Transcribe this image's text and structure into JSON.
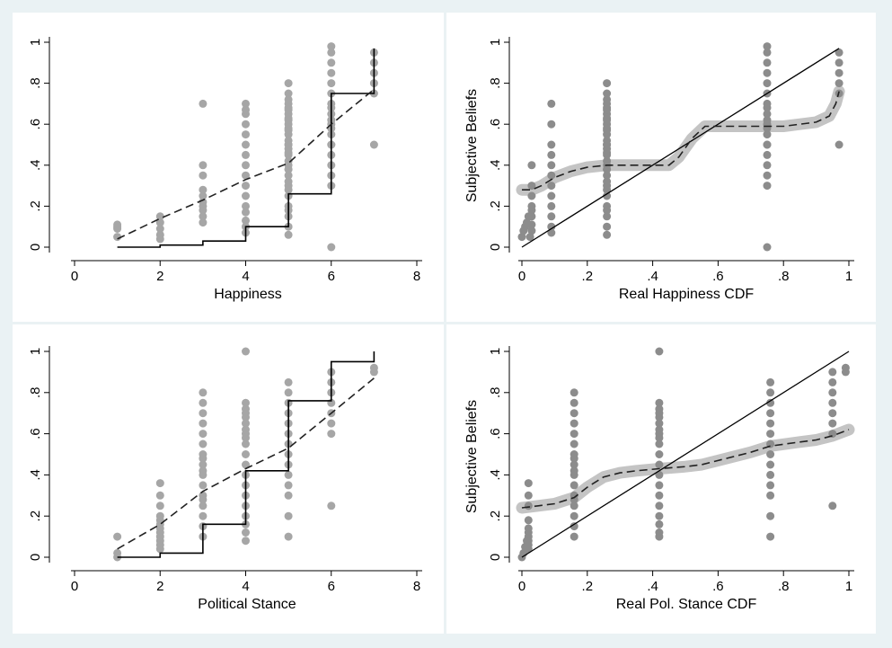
{
  "colors": {
    "background": "#eaf2f4",
    "panel": "#ffffff",
    "dots_left": "#a6a6a6",
    "dots_right": "#8c8c8c",
    "band": "#c4c4c4",
    "lines": "#000000"
  },
  "chart_data": [
    {
      "type": "scatter",
      "id": "happiness",
      "xlabel": "Happiness",
      "ylabel": "",
      "xlim": [
        0,
        8
      ],
      "ylim": [
        0,
        1
      ],
      "xticks": [
        0,
        2,
        4,
        6,
        8
      ],
      "yticks": [
        0,
        0.2,
        0.4,
        0.6,
        0.8,
        1
      ],
      "yticklabels": [
        "0",
        ".2",
        ".4",
        ".6",
        ".8",
        "1"
      ],
      "points": {
        "x": [
          1,
          1,
          1,
          1,
          2,
          2,
          2,
          2,
          2,
          3,
          3,
          3,
          3,
          3,
          3,
          3,
          3,
          3,
          3,
          4,
          4,
          4,
          4,
          4,
          4,
          4,
          4,
          4,
          4,
          4,
          4,
          4,
          4,
          4,
          4,
          5,
          5,
          5,
          5,
          5,
          5,
          5,
          5,
          5,
          5,
          5,
          5,
          5,
          5,
          5,
          5,
          5,
          5,
          5,
          5,
          5,
          5,
          5,
          5,
          5,
          5,
          5,
          5,
          5,
          5,
          5,
          5,
          5,
          6,
          6,
          6,
          6,
          6,
          6,
          6,
          6,
          6,
          6,
          6,
          6,
          6,
          6,
          6,
          6,
          6,
          6,
          6,
          6,
          7,
          7,
          7,
          7,
          7,
          7
        ],
        "y": [
          0.05,
          0.09,
          0.1,
          0.11,
          0.04,
          0.06,
          0.09,
          0.12,
          0.15,
          0.12,
          0.15,
          0.18,
          0.2,
          0.22,
          0.25,
          0.28,
          0.35,
          0.4,
          0.7,
          0.07,
          0.1,
          0.13,
          0.17,
          0.2,
          0.25,
          0.3,
          0.35,
          0.4,
          0.45,
          0.5,
          0.55,
          0.6,
          0.65,
          0.67,
          0.7,
          0.06,
          0.1,
          0.15,
          0.18,
          0.2,
          0.25,
          0.28,
          0.3,
          0.32,
          0.35,
          0.38,
          0.4,
          0.42,
          0.45,
          0.48,
          0.5,
          0.52,
          0.55,
          0.57,
          0.6,
          0.62,
          0.65,
          0.67,
          0.7,
          0.72,
          0.75,
          0.8,
          0.38,
          0.46,
          0.5,
          0.58,
          0.63,
          0.68,
          0.0,
          0.3,
          0.35,
          0.4,
          0.45,
          0.5,
          0.55,
          0.58,
          0.6,
          0.62,
          0.65,
          0.68,
          0.7,
          0.75,
          0.8,
          0.85,
          0.9,
          0.95,
          0.98,
          0.5,
          0.5,
          0.75,
          0.8,
          0.85,
          0.9,
          0.95
        ]
      },
      "step": {
        "x": [
          1,
          2,
          3,
          4,
          5,
          6,
          7
        ],
        "y": [
          0.0,
          0.01,
          0.03,
          0.1,
          0.26,
          0.75,
          0.97
        ]
      },
      "fit_dashed": {
        "x": [
          1,
          2,
          3,
          4,
          5,
          6,
          7
        ],
        "y": [
          0.04,
          0.14,
          0.23,
          0.33,
          0.41,
          0.6,
          0.77
        ]
      }
    },
    {
      "type": "scatter",
      "id": "happiness_cdf",
      "xlabel": "Real Happiness CDF",
      "ylabel": "Subjective Beliefs",
      "xlim": [
        0,
        1
      ],
      "ylim": [
        0,
        1
      ],
      "xticks": [
        0,
        0.2,
        0.4,
        0.6,
        0.8,
        1
      ],
      "xticklabels": [
        "0",
        ".2",
        ".4",
        ".6",
        ".8",
        "1"
      ],
      "yticks": [
        0,
        0.2,
        0.4,
        0.6,
        0.8,
        1
      ],
      "yticklabels": [
        "0",
        ".2",
        ".4",
        ".6",
        ".8",
        "1"
      ],
      "points": {
        "x": [
          0,
          0.005,
          0.01,
          0.015,
          0.02,
          0.025,
          0.03,
          0.03,
          0.03,
          0.03,
          0.03,
          0.03,
          0.03,
          0.03,
          0.09,
          0.09,
          0.09,
          0.09,
          0.09,
          0.09,
          0.09,
          0.09,
          0.09,
          0.09,
          0.09,
          0.09,
          0.26,
          0.26,
          0.26,
          0.26,
          0.26,
          0.26,
          0.26,
          0.26,
          0.26,
          0.26,
          0.26,
          0.26,
          0.26,
          0.26,
          0.26,
          0.26,
          0.26,
          0.26,
          0.26,
          0.26,
          0.26,
          0.26,
          0.26,
          0.26,
          0.26,
          0.26,
          0.26,
          0.26,
          0.26,
          0.26,
          0.26,
          0.26,
          0.26,
          0.75,
          0.75,
          0.75,
          0.75,
          0.75,
          0.75,
          0.75,
          0.75,
          0.75,
          0.75,
          0.75,
          0.75,
          0.75,
          0.75,
          0.75,
          0.75,
          0.75,
          0.75,
          0.75,
          0.75,
          0.97,
          0.97,
          0.97,
          0.97,
          0.97,
          0.97
        ],
        "y": [
          0.05,
          0.08,
          0.1,
          0.12,
          0.15,
          0.05,
          0.08,
          0.11,
          0.15,
          0.18,
          0.2,
          0.25,
          0.3,
          0.4,
          0.07,
          0.1,
          0.15,
          0.2,
          0.25,
          0.3,
          0.35,
          0.4,
          0.45,
          0.5,
          0.6,
          0.7,
          0.06,
          0.1,
          0.15,
          0.18,
          0.2,
          0.25,
          0.28,
          0.3,
          0.32,
          0.35,
          0.38,
          0.4,
          0.42,
          0.45,
          0.48,
          0.5,
          0.52,
          0.55,
          0.57,
          0.6,
          0.62,
          0.65,
          0.67,
          0.7,
          0.72,
          0.75,
          0.8,
          0.38,
          0.46,
          0.5,
          0.58,
          0.63,
          0.68,
          0.0,
          0.3,
          0.35,
          0.4,
          0.45,
          0.5,
          0.55,
          0.58,
          0.6,
          0.62,
          0.65,
          0.68,
          0.7,
          0.75,
          0.8,
          0.85,
          0.9,
          0.95,
          0.98,
          0.5,
          0.5,
          0.75,
          0.8,
          0.85,
          0.9,
          0.95
        ]
      },
      "diagonal": {
        "x": [
          0,
          0.97
        ],
        "y": [
          0,
          0.97
        ]
      },
      "fit_dashed": {
        "x": [
          0,
          0.03,
          0.06,
          0.1,
          0.15,
          0.2,
          0.26,
          0.3,
          0.35,
          0.4,
          0.45,
          0.48,
          0.52,
          0.56,
          0.6,
          0.7,
          0.8,
          0.9,
          0.94,
          0.96,
          0.97
        ],
        "y": [
          0.28,
          0.28,
          0.3,
          0.34,
          0.37,
          0.39,
          0.4,
          0.4,
          0.4,
          0.4,
          0.4,
          0.44,
          0.53,
          0.59,
          0.59,
          0.59,
          0.59,
          0.61,
          0.64,
          0.7,
          0.76
        ]
      }
    },
    {
      "type": "scatter",
      "id": "political",
      "xlabel": "Political Stance",
      "ylabel": "",
      "xlim": [
        0,
        8
      ],
      "ylim": [
        0,
        1
      ],
      "xticks": [
        0,
        2,
        4,
        6,
        8
      ],
      "yticks": [
        0,
        0.2,
        0.4,
        0.6,
        0.8,
        1
      ],
      "yticklabels": [
        "0",
        ".2",
        ".4",
        ".6",
        ".8",
        "1"
      ],
      "points": {
        "x": [
          1,
          1,
          1,
          2,
          2,
          2,
          2,
          2,
          2,
          2,
          2,
          2,
          2,
          2,
          2,
          3,
          3,
          3,
          3,
          3,
          3,
          3,
          3,
          3,
          3,
          3,
          3,
          3,
          3,
          3,
          3,
          3,
          3,
          4,
          4,
          4,
          4,
          4,
          4,
          4,
          4,
          4,
          4,
          4,
          4,
          4,
          4,
          4,
          4,
          4,
          4,
          4,
          4,
          5,
          5,
          5,
          5,
          5,
          5,
          5,
          5,
          5,
          5,
          5,
          5,
          5,
          5,
          6,
          6,
          6,
          6,
          6,
          6,
          6,
          6,
          7,
          7
        ],
        "y": [
          0.0,
          0.02,
          0.1,
          0.04,
          0.06,
          0.08,
          0.1,
          0.12,
          0.14,
          0.16,
          0.18,
          0.2,
          0.25,
          0.3,
          0.36,
          0.1,
          0.15,
          0.2,
          0.25,
          0.3,
          0.35,
          0.4,
          0.45,
          0.5,
          0.55,
          0.6,
          0.65,
          0.7,
          0.75,
          0.8,
          0.28,
          0.42,
          0.48,
          0.08,
          0.12,
          0.16,
          0.2,
          0.25,
          0.3,
          0.35,
          0.4,
          0.45,
          0.5,
          0.55,
          0.6,
          0.62,
          0.65,
          0.68,
          0.7,
          0.72,
          0.75,
          1.0,
          0.58,
          0.1,
          0.2,
          0.3,
          0.35,
          0.4,
          0.45,
          0.5,
          0.55,
          0.6,
          0.65,
          0.7,
          0.75,
          0.8,
          0.85,
          0.25,
          0.6,
          0.65,
          0.7,
          0.75,
          0.8,
          0.85,
          0.9,
          0.9,
          0.92
        ]
      },
      "step": {
        "x": [
          1,
          2,
          3,
          4,
          5,
          6,
          7
        ],
        "y": [
          0.0,
          0.02,
          0.16,
          0.42,
          0.76,
          0.95,
          1.0
        ]
      },
      "fit_dashed": {
        "x": [
          1,
          2,
          3,
          4,
          5,
          6,
          7
        ],
        "y": [
          0.04,
          0.16,
          0.32,
          0.43,
          0.53,
          0.7,
          0.87
        ]
      }
    },
    {
      "type": "scatter",
      "id": "political_cdf",
      "xlabel": "Real Pol. Stance CDF",
      "ylabel": "Subjective Beliefs",
      "xlim": [
        0,
        1
      ],
      "ylim": [
        0,
        1
      ],
      "xticks": [
        0,
        0.2,
        0.4,
        0.6,
        0.8,
        1
      ],
      "xticklabels": [
        "0",
        ".2",
        ".4",
        ".6",
        ".8",
        "1"
      ],
      "yticks": [
        0,
        0.2,
        0.4,
        0.6,
        0.8,
        1
      ],
      "yticklabels": [
        "0",
        ".2",
        ".4",
        ".6",
        ".8",
        "1"
      ],
      "points": {
        "x": [
          0,
          0.005,
          0.01,
          0.015,
          0.02,
          0.02,
          0.02,
          0.02,
          0.02,
          0.02,
          0.02,
          0.02,
          0.02,
          0.02,
          0.16,
          0.16,
          0.16,
          0.16,
          0.16,
          0.16,
          0.16,
          0.16,
          0.16,
          0.16,
          0.16,
          0.16,
          0.16,
          0.16,
          0.16,
          0.16,
          0.16,
          0.16,
          0.42,
          0.42,
          0.42,
          0.42,
          0.42,
          0.42,
          0.42,
          0.42,
          0.42,
          0.42,
          0.42,
          0.42,
          0.42,
          0.42,
          0.42,
          0.42,
          0.42,
          0.42,
          0.42,
          0.42,
          0.76,
          0.76,
          0.76,
          0.76,
          0.76,
          0.76,
          0.76,
          0.76,
          0.76,
          0.76,
          0.76,
          0.76,
          0.76,
          0.76,
          0.95,
          0.95,
          0.95,
          0.95,
          0.95,
          0.95,
          0.95,
          0.95,
          0.99,
          0.99
        ],
        "y": [
          0.0,
          0.02,
          0.05,
          0.08,
          0.1,
          0.04,
          0.06,
          0.08,
          0.12,
          0.14,
          0.18,
          0.25,
          0.3,
          0.36,
          0.1,
          0.15,
          0.2,
          0.25,
          0.3,
          0.35,
          0.4,
          0.45,
          0.5,
          0.55,
          0.6,
          0.65,
          0.7,
          0.75,
          0.8,
          0.28,
          0.42,
          0.48,
          0.1,
          0.12,
          0.16,
          0.2,
          0.25,
          0.3,
          0.35,
          0.4,
          0.45,
          0.5,
          0.55,
          0.6,
          0.62,
          0.65,
          0.68,
          0.7,
          0.72,
          0.75,
          1.0,
          0.58,
          0.1,
          0.2,
          0.3,
          0.35,
          0.4,
          0.45,
          0.5,
          0.55,
          0.6,
          0.65,
          0.7,
          0.75,
          0.8,
          0.85,
          0.25,
          0.6,
          0.65,
          0.7,
          0.75,
          0.8,
          0.85,
          0.9,
          0.9,
          0.92
        ]
      },
      "diagonal": {
        "x": [
          0,
          1
        ],
        "y": [
          0,
          1
        ]
      },
      "fit_dashed": {
        "x": [
          0,
          0.05,
          0.1,
          0.16,
          0.2,
          0.25,
          0.3,
          0.35,
          0.42,
          0.5,
          0.55,
          0.6,
          0.7,
          0.76,
          0.85,
          0.9,
          0.95,
          1.0
        ],
        "y": [
          0.24,
          0.25,
          0.26,
          0.29,
          0.34,
          0.39,
          0.41,
          0.42,
          0.43,
          0.44,
          0.45,
          0.47,
          0.51,
          0.54,
          0.56,
          0.57,
          0.59,
          0.62
        ]
      }
    }
  ]
}
